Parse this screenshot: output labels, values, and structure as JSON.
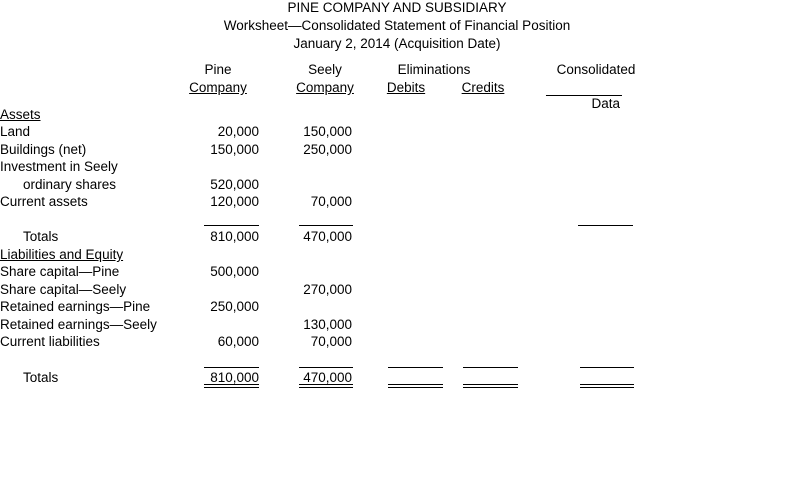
{
  "header": {
    "title": "PINE COMPANY AND SUBSIDIARY",
    "subtitle": "Worksheet—Consolidated Statement of Financial Position",
    "date": "January 2, 2014 (Acquisition Date)"
  },
  "columns": {
    "pine_top": "Pine",
    "pine_bottom": "Company",
    "seely_top": "Seely",
    "seely_bottom": "Company",
    "eliminations": "Eliminations",
    "debits": "Debits",
    "credits": "Credits",
    "consolidated_top": "Consolidated",
    "consolidated_bottom": "Data"
  },
  "rows": [
    {
      "label": "Assets",
      "underline": true,
      "pine": "",
      "seely": ""
    },
    {
      "label": "Land",
      "pine": "20,000",
      "seely": "150,000"
    },
    {
      "label": "Buildings (net)",
      "pine": "150,000",
      "seely": "250,000"
    },
    {
      "label": "Investment in Seely",
      "pine": "",
      "seely": ""
    },
    {
      "label": "ordinary shares",
      "indent": true,
      "pine": "520,000",
      "seely": ""
    },
    {
      "label": "Current assets",
      "pine": "120,000",
      "seely": "70,000"
    },
    {
      "label": "Totals",
      "indent": true,
      "pine": "810,000",
      "seely": "470,000"
    },
    {
      "label": "Liabilities and Equity",
      "underline": true,
      "pine": "",
      "seely": ""
    },
    {
      "label": "Share capital—Pine",
      "pine": "500,000",
      "seely": ""
    },
    {
      "label": "Share capital—Seely",
      "pine": "",
      "seely": "270,000"
    },
    {
      "label": "Retained earnings—Pine",
      "pine": "250,000",
      "seely": ""
    },
    {
      "label": "Retained earnings—Seely",
      "pine": "",
      "seely": "130,000"
    },
    {
      "label": "Current liabilities",
      "pine": "60,000",
      "seely": "70,000"
    },
    {
      "label": "Totals",
      "indent": true,
      "double": true,
      "pine": "810,000",
      "seely": "470,000"
    }
  ]
}
